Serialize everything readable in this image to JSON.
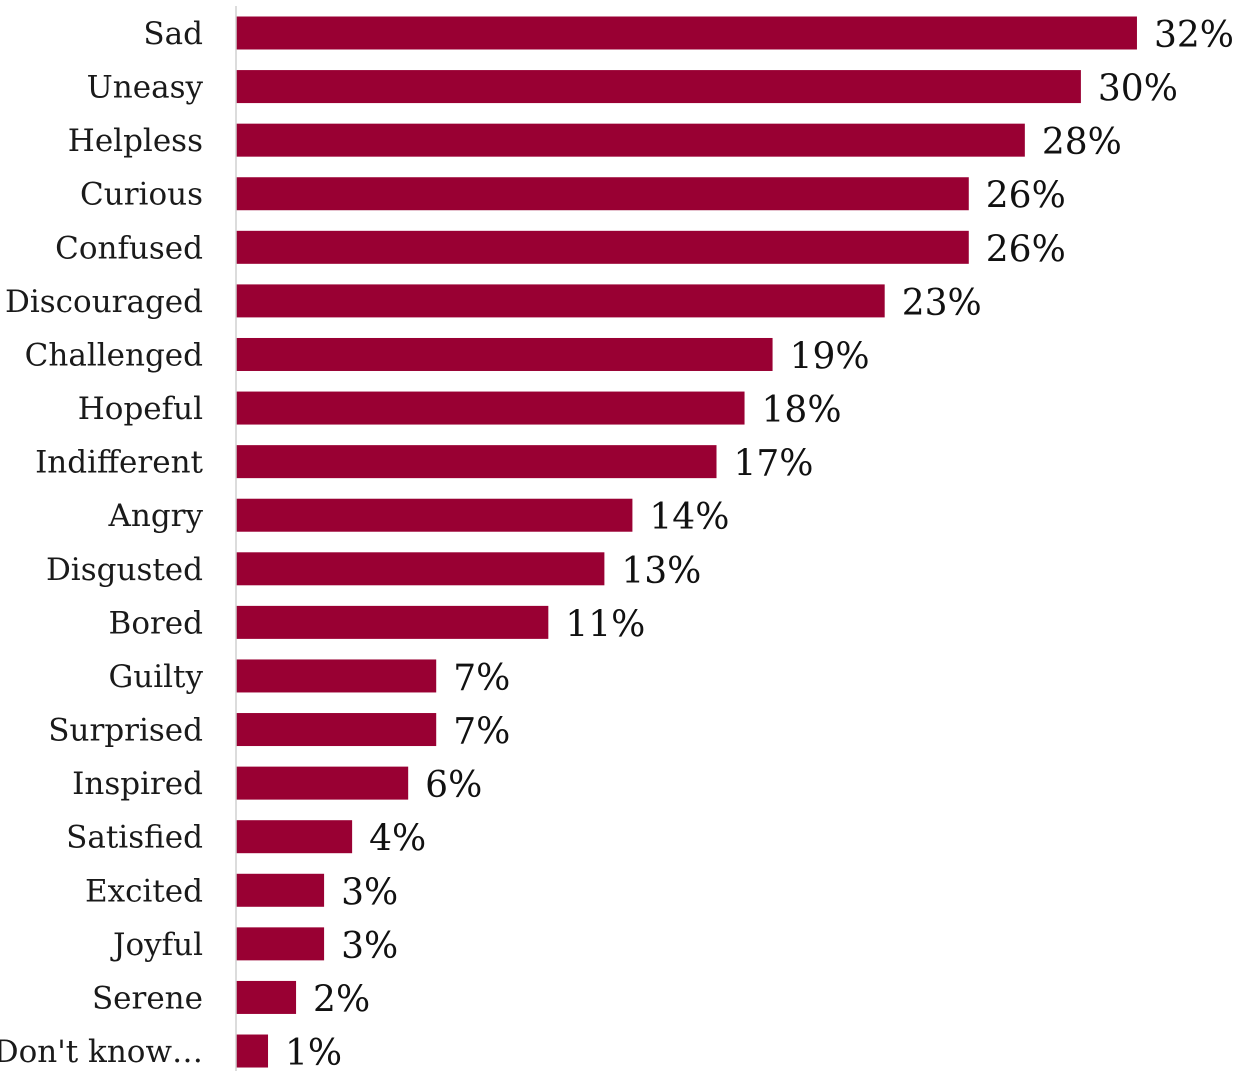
{
  "chart_data": {
    "type": "bar",
    "orientation": "horizontal",
    "categories": [
      "Sad",
      "Uneasy",
      "Helpless",
      "Curious",
      "Confused",
      "Discouraged",
      "Challenged",
      "Hopeful",
      "Indifferent",
      "Angry",
      "Disgusted",
      "Bored",
      "Guilty",
      "Surprised",
      "Inspired",
      "Satisfied",
      "Excited",
      "Joyful",
      "Serene",
      "Don't know…"
    ],
    "values": [
      32,
      30,
      28,
      26,
      26,
      23,
      19,
      18,
      17,
      14,
      13,
      11,
      7,
      7,
      6,
      4,
      3,
      3,
      2,
      1
    ],
    "value_labels": [
      "32%",
      "30%",
      "28%",
      "26%",
      "26%",
      "23%",
      "19%",
      "18%",
      "17%",
      "14%",
      "13%",
      "11%",
      "7%",
      "7%",
      "6%",
      "4%",
      "3%",
      "3%",
      "2%",
      "1%"
    ],
    "title": "",
    "xlabel": "",
    "ylabel": "",
    "xlim": [
      0,
      32
    ],
    "grid": false,
    "legend": "none",
    "bar_color": "#990033",
    "axis_color": "#d0d0d0"
  }
}
